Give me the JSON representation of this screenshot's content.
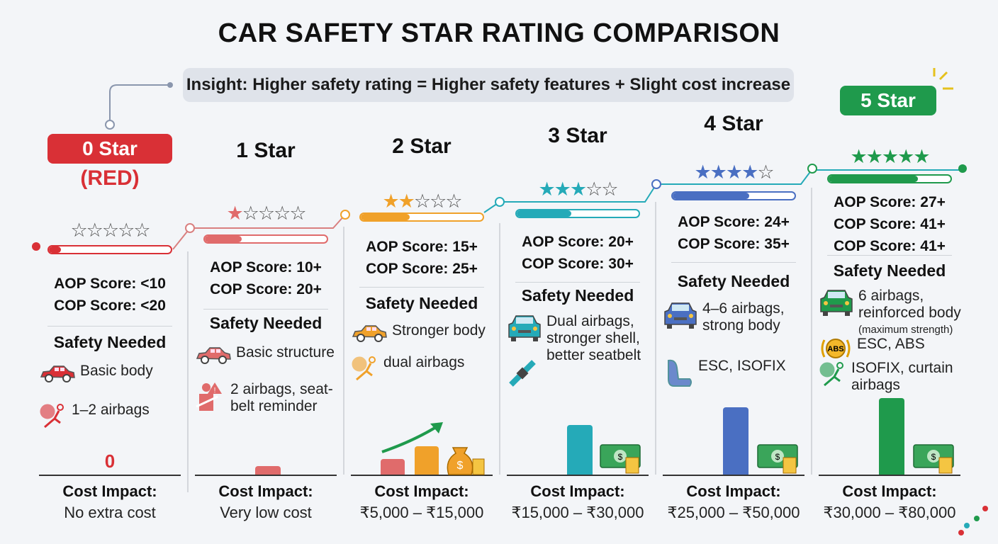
{
  "title": "CAR SAFETY STAR RATING COMPARISON",
  "insight": "Insight: Higher safety rating = Higher safety features + Slight cost increase",
  "section_label": "Safety Needed",
  "cost_label": "Cost Impact:",
  "columns": [
    {
      "heading": "0 Star",
      "subheading": "(RED)",
      "rating": 0,
      "color": "#d93036",
      "progress": 0.1,
      "scores": [
        "AOP Score: <10",
        "COP Score: <20"
      ],
      "items": [
        {
          "icon": "car-icon",
          "text": "Basic body"
        },
        {
          "icon": "airbag-icon",
          "text": "1–2 airbags"
        }
      ],
      "cost_marker": "0",
      "cost": "No extra cost"
    },
    {
      "heading": "1 Star",
      "rating": 1,
      "color": "#e06b6b",
      "progress": 0.3,
      "scores": [
        "AOP Score: 10+",
        "COP Score: 20+"
      ],
      "items": [
        {
          "icon": "car-icon",
          "text": "Basic structure"
        },
        {
          "icon": "seatbelt-warning-icon",
          "text": "2 airbags, seat-belt reminder"
        }
      ],
      "cost": "Very low cost"
    },
    {
      "heading": "2 Star",
      "rating": 2,
      "color": "#f0a12a",
      "progress": 0.4,
      "scores": [
        "AOP Score: 15+",
        "COP Score: 25+"
      ],
      "items": [
        {
          "icon": "car-icon",
          "text": "Stronger body"
        },
        {
          "icon": "airbag-icon",
          "text": "dual airbags"
        }
      ],
      "cost": "₹5,000 – ₹15,000"
    },
    {
      "heading": "3 Star",
      "rating": 3,
      "color": "#25aab8",
      "progress": 0.45,
      "scores": [
        "AOP Score: 20+",
        "COP Score: 30+"
      ],
      "items": [
        {
          "icon": "car-front-icon",
          "text": "Dual airbags, stronger shell, better seatbelt"
        },
        {
          "icon": "seatbelt-icon",
          "text": ""
        }
      ],
      "cost": "₹15,000 – ₹30,000"
    },
    {
      "heading": "4 Star",
      "rating": 4,
      "color": "#4a6fc2",
      "progress": 0.63,
      "scores": [
        "AOP Score: 24+",
        "COP Score: 35+"
      ],
      "items": [
        {
          "icon": "car-front-icon",
          "text": "4–6 airbags, strong body"
        },
        {
          "icon": "child-seat-icon",
          "text": "ESC, ISOFIX"
        }
      ],
      "cost": "₹25,000 – ₹50,000"
    },
    {
      "heading": "5 Star",
      "rating": 5,
      "color": "#1f9a4c",
      "progress": 0.73,
      "scores": [
        "AOP Score: 27+",
        "COP Score: 41+",
        "COP Score: 41+"
      ],
      "items": [
        {
          "icon": "car-front-icon",
          "text": "6 airbags, reinforced body",
          "note": "(maximum strength)"
        },
        {
          "icon": "abs-icon",
          "text": "ESC, ABS",
          "badge": "ABS"
        },
        {
          "icon": "airbag-icon",
          "text": "ISOFIX, curtain airbags"
        }
      ],
      "cost": "₹30,000 – ₹80,000"
    }
  ]
}
